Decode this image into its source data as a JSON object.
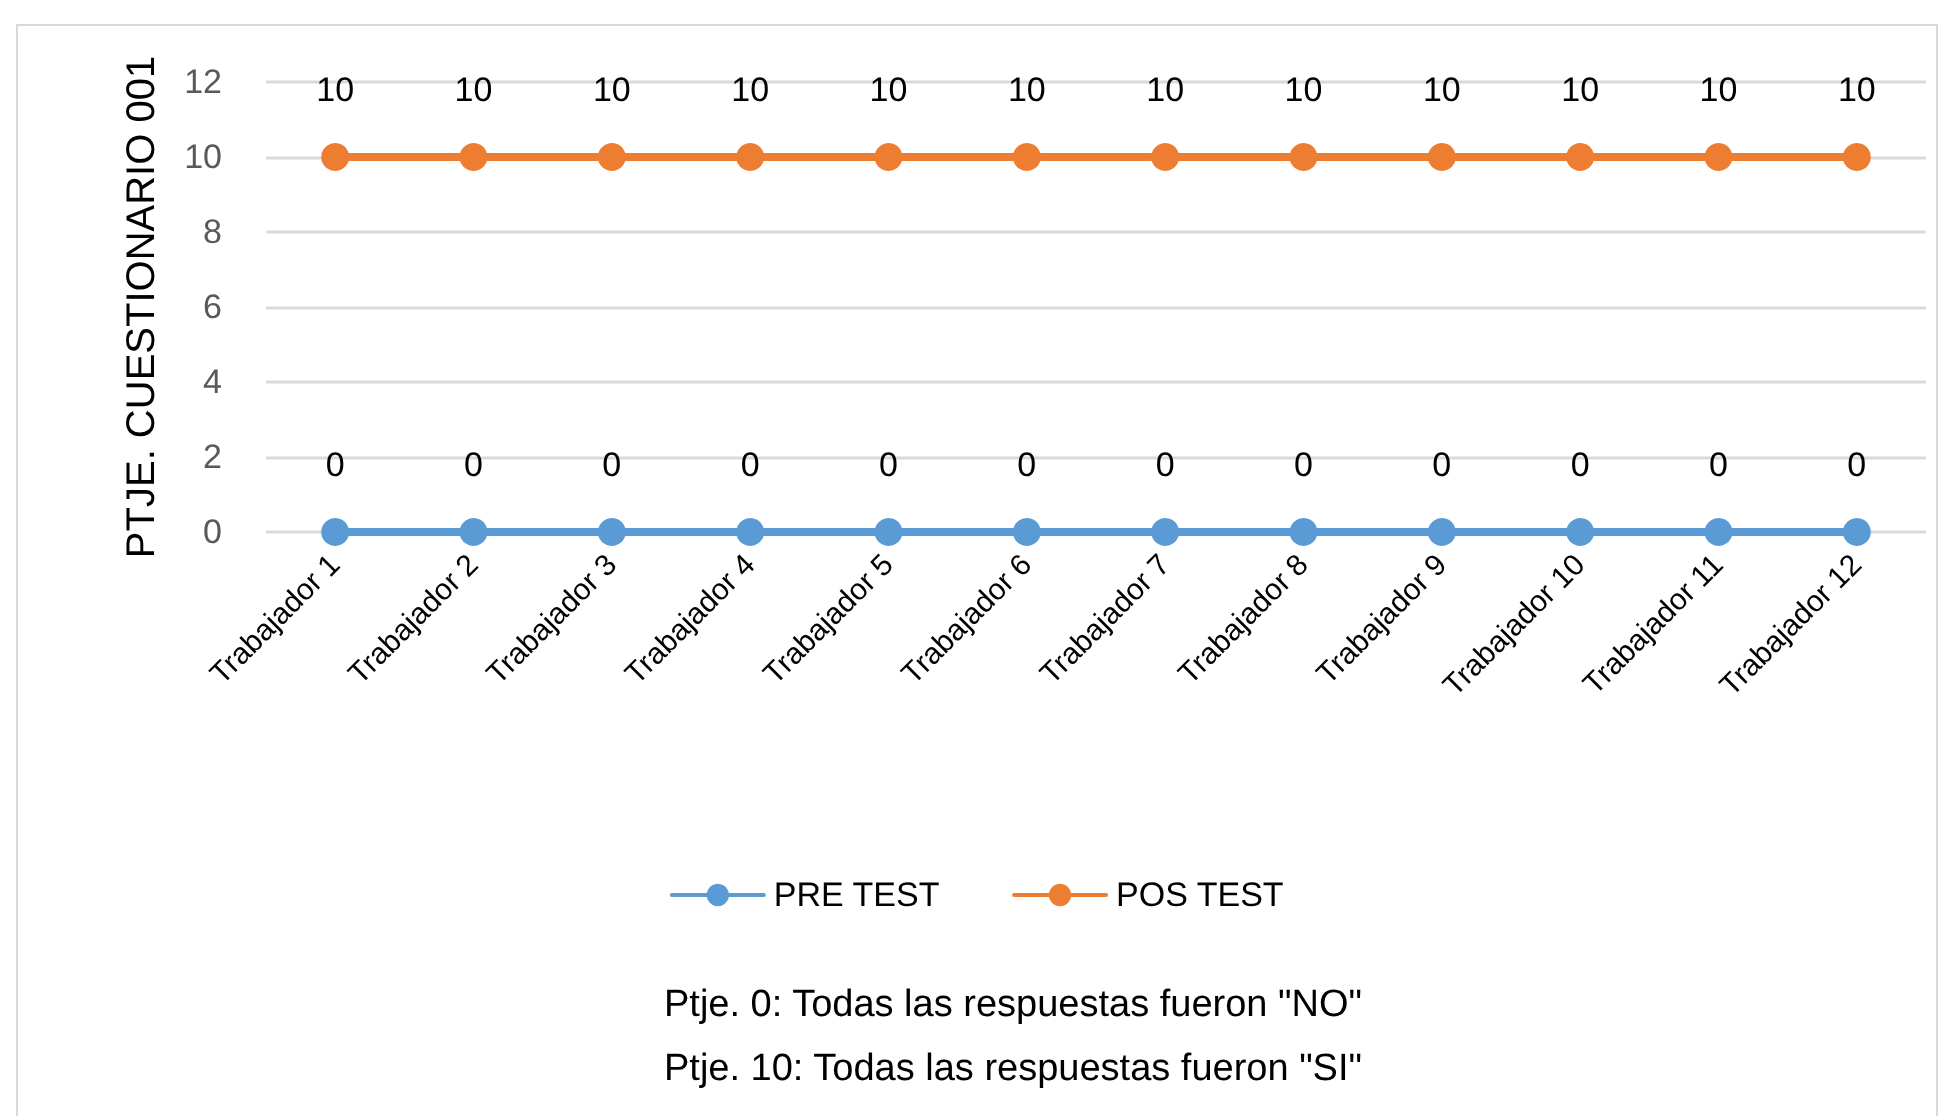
{
  "chart_data": {
    "type": "line",
    "ylabel": "PTJE. CUESTIONARIO 001",
    "categories": [
      "Trabajador 1",
      "Trabajador 2",
      "Trabajador 3",
      "Trabajador 4",
      "Trabajador 5",
      "Trabajador 6",
      "Trabajador 7",
      "Trabajador 8",
      "Trabajador 9",
      "Trabajador 10",
      "Trabajador 11",
      "Trabajador 12"
    ],
    "series": [
      {
        "name": "PRE TEST",
        "color": "#5b9bd5",
        "values": [
          0,
          0,
          0,
          0,
          0,
          0,
          0,
          0,
          0,
          0,
          0,
          0
        ]
      },
      {
        "name": "POS TEST",
        "color": "#ed7d31",
        "values": [
          10,
          10,
          10,
          10,
          10,
          10,
          10,
          10,
          10,
          10,
          10,
          10
        ]
      }
    ],
    "ylim": [
      0,
      12
    ],
    "yticks": [
      0,
      2,
      4,
      6,
      8,
      10,
      12
    ],
    "grid": "y",
    "legend": "bottom",
    "marker": "circle",
    "line_style": "solid",
    "data_labels": true,
    "annotations": [
      "Ptje. 0: Todas las respuestas fueron \"NO\"",
      "Ptje. 10: Todas las respuestas fueron \"SI\""
    ]
  }
}
